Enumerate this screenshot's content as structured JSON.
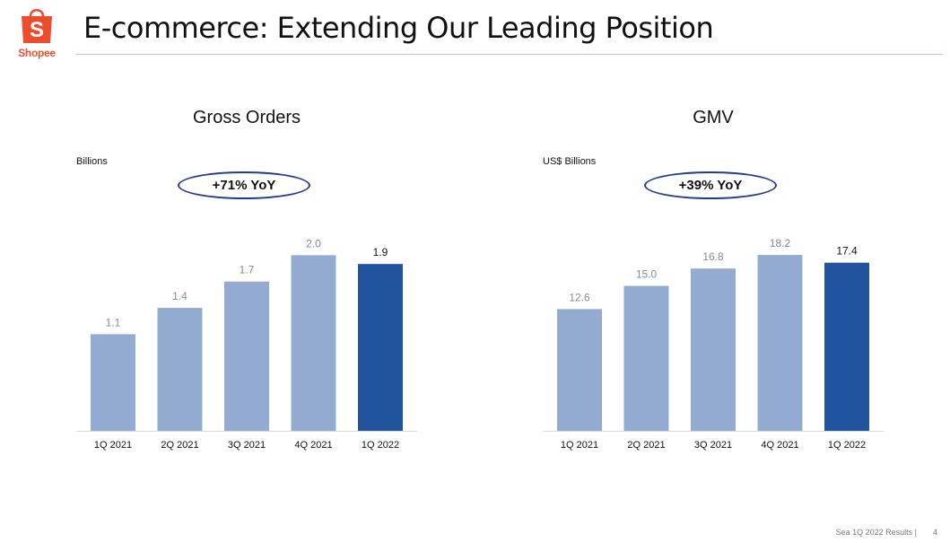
{
  "header": {
    "brand": "Shopee",
    "title": "E-commerce: Extending Our Leading Position"
  },
  "colors": {
    "brand": "#ee4d2d",
    "bar_light": "#93abd0",
    "bar_highlight": "#22539f",
    "badge_border": "#1f3b8c"
  },
  "chart_data": [
    {
      "type": "bar",
      "title": "Gross Orders",
      "unit_label": "Billions",
      "badge": "+71% YoY",
      "categories": [
        "1Q 2021",
        "2Q 2021",
        "3Q 2021",
        "4Q 2021",
        "1Q 2022"
      ],
      "values": [
        1.1,
        1.4,
        1.7,
        2.0,
        1.9
      ],
      "value_labels": [
        "1.1",
        "1.4",
        "1.7",
        "2.0",
        "1.9"
      ],
      "highlight_index": 4,
      "ylim": [
        0,
        2.3
      ],
      "grid": false
    },
    {
      "type": "bar",
      "title": "GMV",
      "unit_label": "US$ Billions",
      "badge": "+39% YoY",
      "categories": [
        "1Q 2021",
        "2Q 2021",
        "3Q 2021",
        "4Q 2021",
        "1Q 2022"
      ],
      "values": [
        12.6,
        15.0,
        16.8,
        18.2,
        17.4
      ],
      "value_labels": [
        "12.6",
        "15.0",
        "16.8",
        "18.2",
        "17.4"
      ],
      "highlight_index": 4,
      "ylim": [
        0,
        20.9
      ],
      "grid": false
    }
  ],
  "footer": {
    "text": "Sea 1Q 2022 Results |",
    "page": "4"
  }
}
